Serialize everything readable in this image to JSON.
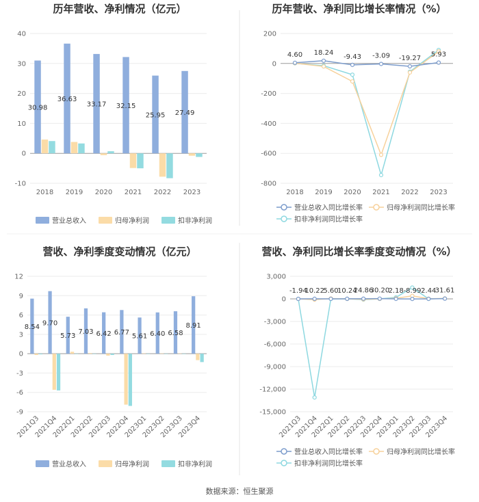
{
  "source": "数据来源：恒生聚源",
  "colors": {
    "revenue": "#8faedd",
    "net_profit": "#fbdca8",
    "deducted": "#93dbe0",
    "revenue_line": "#7c9ccc",
    "profit_line": "#f7d19b",
    "deducted_line": "#8dd8e0"
  },
  "chart_data": [
    {
      "type": "bar",
      "title": "历年营收、净利情况（亿元）",
      "categories": [
        "2018",
        "2019",
        "2020",
        "2021",
        "2022",
        "2023"
      ],
      "ylim": [
        -10,
        40
      ],
      "yticks": [
        "40",
        "30",
        "20",
        "10",
        "0",
        "-10"
      ],
      "series": [
        {
          "name": "营业总收入",
          "values": [
            30.98,
            36.63,
            33.17,
            32.15,
            25.95,
            27.49
          ],
          "labels": [
            "30.98",
            "36.63",
            "33.17",
            "32.15",
            "25.95",
            "27.49"
          ]
        },
        {
          "name": "归母净利润",
          "values": [
            4.6,
            3.8,
            -0.6,
            -4.9,
            -7.8,
            -0.8
          ]
        },
        {
          "name": "扣非净利润",
          "values": [
            4.1,
            3.3,
            0.7,
            -5.0,
            -8.3,
            -1.2
          ]
        }
      ],
      "legend": "bottom"
    },
    {
      "type": "line",
      "title": "历年营收、净利同比增长率情况（%）",
      "categories": [
        "2018",
        "2019",
        "2020",
        "2021",
        "2022",
        "2023"
      ],
      "ylim": [
        -800,
        200
      ],
      "yticks": [
        "200",
        "0",
        "-200",
        "-400",
        "-600",
        "-800"
      ],
      "series": [
        {
          "name": "营业总收入同比增长率",
          "values": [
            4.6,
            18.24,
            -9.43,
            -3.09,
            -19.27,
            5.93
          ],
          "labels": [
            "4.60",
            "18.24",
            "-9.43",
            "-3.09",
            "-19.27",
            "5.93"
          ]
        },
        {
          "name": "归母净利润同比增长率",
          "values": [
            2,
            -20,
            -120,
            -610,
            -60,
            80
          ]
        },
        {
          "name": "扣非净利润同比增长率",
          "values": [
            1,
            -15,
            -75,
            -745,
            -55,
            90
          ]
        }
      ],
      "legend": "bottom"
    },
    {
      "type": "bar",
      "title": "营收、净利季度变动情况（亿元）",
      "categories": [
        "2021Q3",
        "2021Q4",
        "2022Q1",
        "2022Q2",
        "2022Q3",
        "2022Q4",
        "2023Q1",
        "2023Q2",
        "2023Q3",
        "2023Q4"
      ],
      "ylim": [
        -9,
        12
      ],
      "yticks": [
        "12",
        "9",
        "6",
        "3",
        "0",
        "-3",
        "-6",
        "-9"
      ],
      "series": [
        {
          "name": "营业总收入",
          "values": [
            8.54,
            9.7,
            5.73,
            7.03,
            6.42,
            6.77,
            5.61,
            6.4,
            6.58,
            8.91
          ],
          "labels": [
            "8.54",
            "9.70",
            "5.73",
            "7.03",
            "6.42",
            "6.77",
            "5.61",
            "6.40",
            "6.58",
            "8.91"
          ]
        },
        {
          "name": "归母净利润",
          "values": [
            -0.2,
            -5.6,
            0.3,
            0.1,
            -0.3,
            -7.9,
            0.05,
            0.05,
            0.05,
            -1.0
          ]
        },
        {
          "name": "扣非净利润",
          "values": [
            -0.1,
            -5.7,
            0.0,
            0.0,
            -0.2,
            -8.1,
            0.0,
            0.0,
            0.0,
            -1.3
          ]
        }
      ],
      "legend": "bottom"
    },
    {
      "type": "line",
      "title": "营收、净利同比增长率季度变动情况（%）",
      "categories": [
        "2021Q3",
        "2021Q4",
        "2022Q1",
        "2022Q2",
        "2022Q3",
        "2022Q4",
        "2023Q1",
        "2023Q2",
        "2023Q3",
        "2023Q4"
      ],
      "ylim": [
        -15000,
        3000
      ],
      "yticks": [
        "3,000",
        "0",
        "-3,000",
        "-6,000",
        "-9,000",
        "-12,000",
        "-15,000"
      ],
      "series": [
        {
          "name": "营业总收入同比增长率",
          "values": [
            -1.94,
            10.22,
            5.6,
            10.24,
            24.86,
            30.2,
            2.18,
            -8.99,
            2.44,
            31.61
          ],
          "labels": [
            "-1.94",
            "10.22",
            "5.60",
            "10.24",
            "24.86",
            "30.20",
            "2.18",
            "-8.99",
            "2.44",
            "31.61"
          ]
        },
        {
          "name": "归母净利润同比增长率",
          "values": [
            0,
            -100,
            50,
            0,
            -60,
            0,
            80,
            400,
            20,
            60
          ]
        },
        {
          "name": "扣非净利润同比增长率",
          "values": [
            0,
            -13100,
            0,
            0,
            -100,
            0,
            200,
            1500,
            0,
            50
          ]
        }
      ],
      "legend": "bottom"
    }
  ]
}
